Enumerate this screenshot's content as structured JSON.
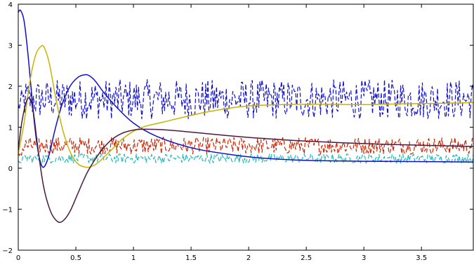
{
  "chart_data": {
    "type": "line",
    "title": "",
    "xlabel": "",
    "ylabel": "",
    "xlim": [
      0,
      3.95
    ],
    "ylim": [
      -2,
      4
    ],
    "grid": false,
    "x_ticks": [
      0,
      0.5,
      1,
      1.5,
      2,
      2.5,
      3,
      3.5
    ],
    "x_tick_labels": [
      "0",
      "0.5",
      "1",
      "1.5",
      "2",
      "2.5",
      "3",
      "3.5"
    ],
    "y_ticks": [
      -2,
      -1,
      0,
      1,
      2,
      3,
      4
    ],
    "y_tick_labels": [
      "−2",
      "−1",
      "0",
      "1",
      "2",
      "3",
      "4"
    ],
    "series": [
      {
        "color": "#1010cc",
        "style": "dashed",
        "noisy": true,
        "mean": 1.68,
        "amplitude": 0.42,
        "start_value": 1.5
      },
      {
        "color": "#cc2200",
        "style": "dashed",
        "noisy": true,
        "mean": 0.55,
        "amplitude": 0.18,
        "start_value": 0.3
      },
      {
        "color": "#20b8b8",
        "style": "dashed",
        "noisy": true,
        "mean": 0.24,
        "amplitude": 0.1,
        "start_value": 0.15
      },
      {
        "color": "#1010cc",
        "style": "solid",
        "x": [
          0,
          0.02,
          0.05,
          0.08,
          0.11,
          0.14,
          0.17,
          0.2,
          0.23,
          0.27,
          0.32,
          0.38,
          0.45,
          0.52,
          0.58,
          0.62,
          0.67,
          0.75,
          0.85,
          1.0,
          1.2,
          1.5,
          1.8,
          2.1,
          2.5,
          3.0,
          3.5,
          3.95
        ],
        "y": [
          3.8,
          3.85,
          3.6,
          2.9,
          2.0,
          1.1,
          0.45,
          0.08,
          0.05,
          0.35,
          0.95,
          1.55,
          2.0,
          2.22,
          2.28,
          2.25,
          2.12,
          1.82,
          1.5,
          1.1,
          0.78,
          0.5,
          0.35,
          0.25,
          0.19,
          0.17,
          0.16,
          0.15
        ]
      },
      {
        "color": "#c8b400",
        "style": "solid",
        "x": [
          0,
          0.05,
          0.1,
          0.15,
          0.2,
          0.23,
          0.27,
          0.32,
          0.38,
          0.45,
          0.52,
          0.6,
          0.65,
          0.7,
          0.8,
          0.9,
          1.0,
          1.1,
          1.25,
          1.4,
          1.6,
          1.8,
          2.0,
          2.3,
          2.6,
          3.0,
          3.3,
          3.6,
          3.95
        ],
        "y": [
          0.35,
          1.1,
          2.1,
          2.75,
          2.98,
          2.92,
          2.55,
          1.8,
          1.0,
          0.4,
          0.1,
          0.02,
          0.06,
          0.15,
          0.42,
          0.7,
          0.9,
          1.02,
          1.12,
          1.22,
          1.35,
          1.45,
          1.52,
          1.55,
          1.56,
          1.55,
          1.57,
          1.58,
          1.6
        ]
      },
      {
        "color": "#4a1a40",
        "style": "solid",
        "x": [
          0,
          0.03,
          0.07,
          0.1,
          0.13,
          0.17,
          0.22,
          0.28,
          0.34,
          0.39,
          0.45,
          0.52,
          0.6,
          0.7,
          0.8,
          0.9,
          1.0,
          1.1,
          1.3,
          1.5,
          1.8,
          2.1,
          2.5,
          3.0,
          3.5,
          3.95
        ],
        "y": [
          0.45,
          1.1,
          1.62,
          1.7,
          1.4,
          0.5,
          -0.45,
          -1.05,
          -1.3,
          -1.28,
          -1.05,
          -0.6,
          -0.1,
          0.35,
          0.67,
          0.85,
          0.93,
          0.95,
          0.93,
          0.88,
          0.8,
          0.73,
          0.66,
          0.6,
          0.56,
          0.53
        ]
      }
    ]
  }
}
